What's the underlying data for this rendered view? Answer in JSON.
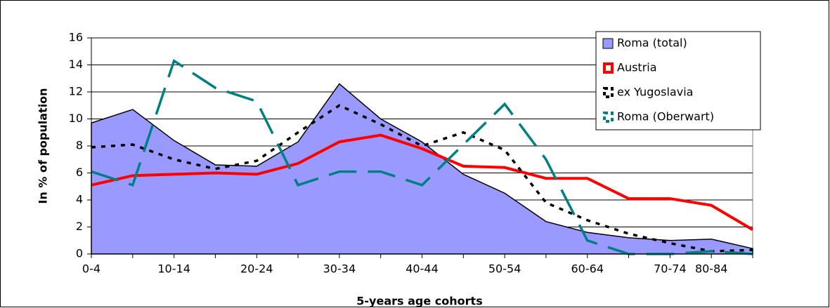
{
  "chart_data": {
    "type": "line",
    "x_label": "5-years age cohorts",
    "y_label": "In % of population",
    "categories": [
      "0-4",
      null,
      "10-14",
      null,
      "20-24",
      null,
      "30-34",
      null,
      "40-44",
      null,
      "50-54",
      null,
      "60-64",
      null,
      "70-74",
      "80-84",
      null
    ],
    "ylim": [
      0,
      16
    ],
    "yticks": [
      0,
      2,
      4,
      6,
      8,
      10,
      12,
      14,
      16
    ],
    "grid": true,
    "legend": "top-right",
    "series": [
      {
        "name": "Roma (total)",
        "color": "#9999ff",
        "style": "area",
        "values": [
          9.7,
          10.7,
          8.4,
          6.6,
          6.5,
          8.3,
          12.6,
          10.0,
          8.3,
          5.9,
          4.5,
          2.4,
          1.6,
          1.2,
          1.0,
          1.1,
          0.4
        ]
      },
      {
        "name": "Austria",
        "color": "#ff0000",
        "style": "solid",
        "values": [
          5.1,
          5.8,
          5.9,
          6.0,
          5.9,
          6.7,
          8.3,
          8.8,
          7.8,
          6.5,
          6.4,
          5.6,
          5.6,
          4.1,
          4.1,
          3.6,
          1.8
        ]
      },
      {
        "name": "ex Yugoslavia",
        "color": "#000000",
        "style": "dotted",
        "values": [
          7.9,
          8.1,
          7.0,
          6.3,
          6.9,
          9.0,
          11.0,
          9.6,
          8.0,
          9.0,
          7.7,
          3.8,
          2.5,
          1.5,
          0.8,
          0.2,
          0.3
        ]
      },
      {
        "name": "Roma (Oberwart)",
        "color": "#008080",
        "style": "dashed",
        "values": [
          6.1,
          5.1,
          14.3,
          12.3,
          11.3,
          5.1,
          6.1,
          6.1,
          5.1,
          8.1,
          11.1,
          7.0,
          1.0,
          0.0,
          0.0,
          0.2,
          0.0
        ]
      }
    ]
  }
}
